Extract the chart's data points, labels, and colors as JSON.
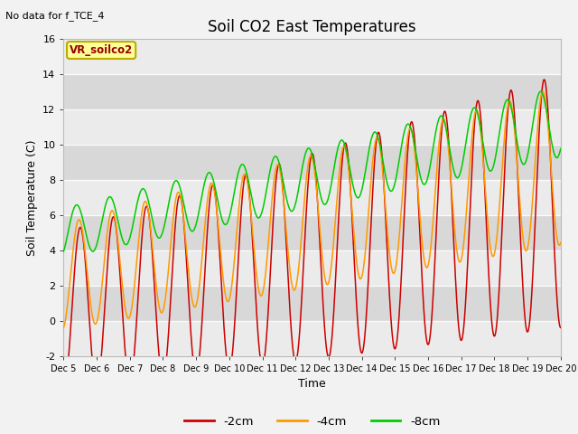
{
  "title": "Soil CO2 East Temperatures",
  "no_data_text": "No data for f_TCE_4",
  "sensor_label": "VR_soilco2",
  "xlabel": "Time",
  "ylabel": "Soil Temperature (C)",
  "ylim": [
    -2,
    16
  ],
  "xlim": [
    0,
    15
  ],
  "yticks": [
    -2,
    0,
    2,
    4,
    6,
    8,
    10,
    12,
    14,
    16
  ],
  "xtick_labels": [
    "Dec 5",
    "Dec 6",
    "Dec 7",
    "Dec 8",
    "Dec 9",
    "Dec 10",
    "Dec 11",
    "Dec 12",
    "Dec 13",
    "Dec 14",
    "Dec 15",
    "Dec 16",
    "Dec 17",
    "Dec 18",
    "Dec 19",
    "Dec 20"
  ],
  "line_colors": [
    "#cc0000",
    "#ff9900",
    "#00cc00"
  ],
  "line_labels": [
    "-2cm",
    "-4cm",
    "-8cm"
  ],
  "bg_color": "#f2f2f2",
  "band_light": "#ebebeb",
  "band_dark": "#d8d8d8",
  "sensor_box_facecolor": "#ffff99",
  "sensor_box_edgecolor": "#bbaa00",
  "sensor_text_color": "#990000",
  "title_fontsize": 12,
  "axis_fontsize": 9,
  "tick_fontsize": 8
}
